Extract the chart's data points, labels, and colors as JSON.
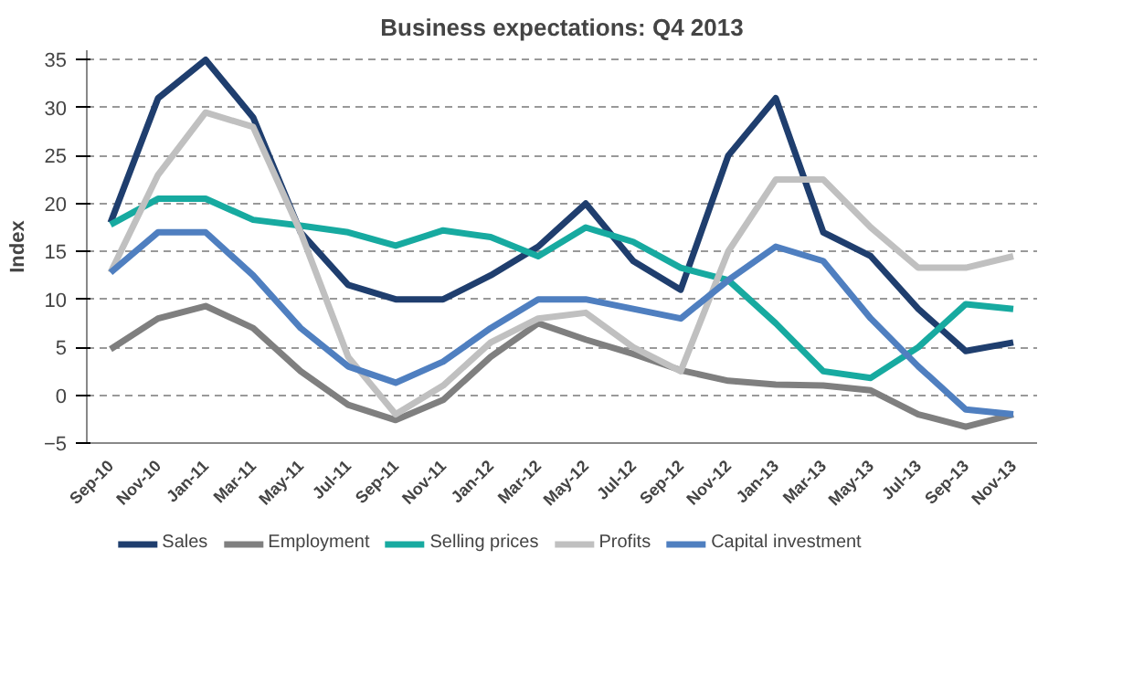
{
  "chart_data": {
    "type": "line",
    "title": "Business expectations: Q4 2013",
    "ylabel": "Index",
    "categories": [
      "Sep-10",
      "Nov-10",
      "Jan-11",
      "Mar-11",
      "May-11",
      "Jul-11",
      "Sep-11",
      "Nov-11",
      "Jan-12",
      "Mar-12",
      "May-12",
      "Jul-12",
      "Sep-12",
      "Nov-12",
      "Jan-13",
      "Mar-13",
      "May-13",
      "Jul-13",
      "Sep-13",
      "Nov-13"
    ],
    "series": [
      {
        "name": "Sales",
        "color": "#1f3e6e",
        "values": [
          18,
          31,
          35,
          29,
          17,
          11.5,
          10,
          10,
          12.5,
          15.5,
          20,
          14,
          11,
          25,
          31,
          17,
          14.5,
          9,
          4.6,
          5.5
        ]
      },
      {
        "name": "Employment",
        "color": "#7f7f7f",
        "values": [
          4.8,
          8,
          9.3,
          7,
          2.5,
          -1,
          -2.6,
          -0.5,
          4,
          7.5,
          5.8,
          4.3,
          2.6,
          1.5,
          1.1,
          1,
          0.5,
          -2,
          -3.3,
          -2
        ]
      },
      {
        "name": "Selling prices",
        "color": "#17aaa0",
        "values": [
          17.8,
          20.5,
          20.5,
          18.3,
          17.7,
          17,
          15.6,
          17.2,
          16.5,
          14.5,
          17.5,
          16,
          13.3,
          12,
          7.5,
          2.5,
          1.8,
          5,
          9.5,
          9
        ]
      },
      {
        "name": "Profits",
        "color": "#c0c0c0",
        "values": [
          12.8,
          23,
          29.5,
          28,
          17,
          4,
          -2,
          1,
          5.5,
          8,
          8.6,
          5,
          2.5,
          15,
          22.5,
          22.5,
          17.5,
          13.3,
          13.3,
          14.5
        ]
      },
      {
        "name": "Capital investment",
        "color": "#4f7fc0",
        "values": [
          12.8,
          17,
          17,
          12.5,
          7,
          3,
          1.3,
          3.5,
          7,
          10,
          10,
          9,
          8,
          12,
          15.5,
          14,
          8,
          3,
          -1.5,
          -2
        ]
      }
    ],
    "ylim": [
      -5,
      36
    ],
    "yticks": [
      -5,
      0,
      5,
      10,
      15,
      20,
      25,
      30,
      35
    ],
    "grid": "y",
    "legend": "bottom",
    "line_style": "solid"
  }
}
